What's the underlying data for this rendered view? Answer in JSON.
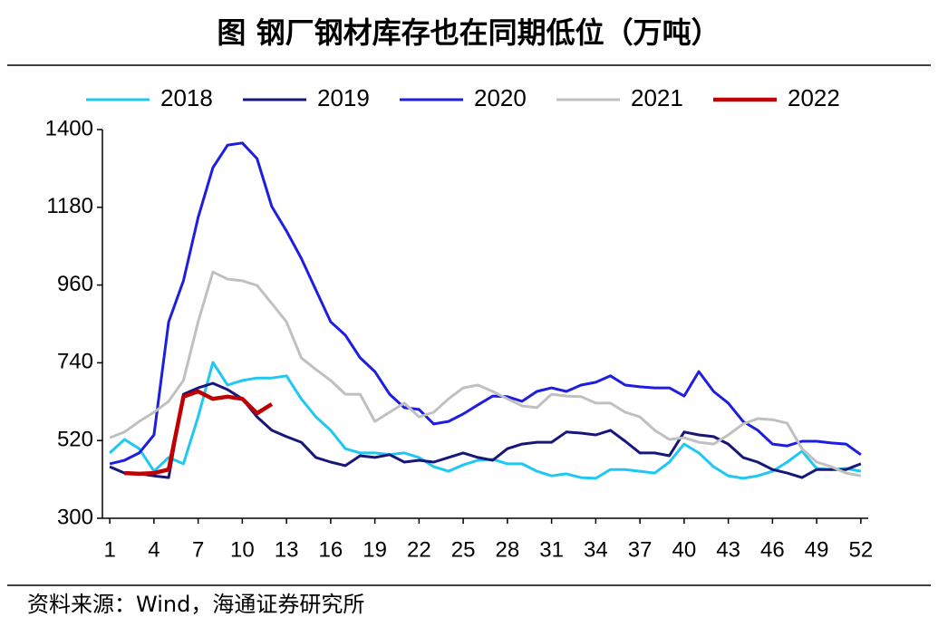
{
  "chart_data": {
    "type": "line",
    "title": "图  钢厂钢材库存也在同期低位（万吨）",
    "source": "资料来源：Wind，海通证券研究所",
    "x": [
      1,
      2,
      3,
      4,
      5,
      6,
      7,
      8,
      9,
      10,
      11,
      12,
      13,
      14,
      15,
      16,
      17,
      18,
      19,
      20,
      21,
      22,
      23,
      24,
      25,
      26,
      27,
      28,
      29,
      30,
      31,
      32,
      33,
      34,
      35,
      36,
      37,
      38,
      39,
      40,
      41,
      42,
      43,
      44,
      45,
      46,
      47,
      48,
      49,
      50,
      51,
      52
    ],
    "xlim": [
      0.5,
      52.5
    ],
    "xticks": [
      1,
      4,
      7,
      10,
      13,
      16,
      19,
      22,
      25,
      28,
      31,
      34,
      37,
      40,
      43,
      46,
      49,
      52
    ],
    "ylim": [
      300,
      1400
    ],
    "yticks": [
      300,
      520,
      740,
      960,
      1180,
      1400
    ],
    "legend": "top",
    "series": [
      {
        "name": "2018",
        "color": "#1ec8f2",
        "values": [
          485,
          523,
          497,
          433,
          472,
          454,
          587,
          741,
          677,
          690,
          697,
          697,
          703,
          638,
          587,
          549,
          497,
          485,
          485,
          480,
          485,
          472,
          446,
          433,
          451,
          464,
          467,
          454,
          454,
          433,
          420,
          426,
          415,
          413,
          438,
          438,
          433,
          428,
          459,
          510,
          485,
          446,
          420,
          413,
          420,
          433,
          459,
          490,
          441,
          438,
          441,
          433
        ]
      },
      {
        "name": "2019",
        "color": "#17177a",
        "values": [
          446,
          428,
          426,
          420,
          415,
          651,
          669,
          682,
          664,
          638,
          587,
          549,
          531,
          515,
          472,
          459,
          449,
          477,
          472,
          480,
          459,
          464,
          459,
          472,
          485,
          472,
          464,
          497,
          510,
          515,
          515,
          544,
          541,
          536,
          549,
          518,
          485,
          485,
          477,
          544,
          536,
          531,
          510,
          472,
          459,
          438,
          428,
          415,
          438,
          438,
          438,
          454
        ]
      },
      {
        "name": "2020",
        "color": "#1e1ee0",
        "values": [
          454,
          464,
          485,
          536,
          856,
          972,
          1151,
          1292,
          1356,
          1362,
          1318,
          1182,
          1113,
          1036,
          946,
          856,
          818,
          754,
          715,
          651,
          613,
          608,
          567,
          574,
          595,
          621,
          646,
          644,
          631,
          659,
          669,
          659,
          677,
          685,
          703,
          677,
          672,
          669,
          669,
          646,
          715,
          659,
          626,
          574,
          549,
          510,
          505,
          518,
          518,
          513,
          510,
          480
        ]
      },
      {
        "name": "2021",
        "color": "#c0c0c0",
        "values": [
          528,
          544,
          574,
          600,
          631,
          690,
          856,
          997,
          977,
          972,
          959,
          908,
          856,
          754,
          721,
          690,
          651,
          651,
          574,
          600,
          626,
          587,
          600,
          638,
          669,
          677,
          659,
          638,
          618,
          613,
          651,
          646,
          644,
          626,
          626,
          600,
          587,
          549,
          523,
          528,
          515,
          510,
          536,
          567,
          582,
          579,
          569,
          497,
          459,
          446,
          428,
          420
        ]
      },
      {
        "name": "2022",
        "color": "#c00000",
        "width": 4.5,
        "values": [
          null,
          428,
          426,
          428,
          438,
          644,
          659,
          638,
          644,
          638,
          597,
          623,
          null,
          null,
          null,
          null,
          null,
          null,
          null,
          null,
          null,
          null,
          null,
          null,
          null,
          null,
          null,
          null,
          null,
          null,
          null,
          null,
          null,
          null,
          null,
          null,
          null,
          null,
          null,
          null,
          null,
          null,
          null,
          null,
          null,
          null,
          null,
          null,
          null,
          null,
          null,
          null
        ]
      }
    ]
  }
}
